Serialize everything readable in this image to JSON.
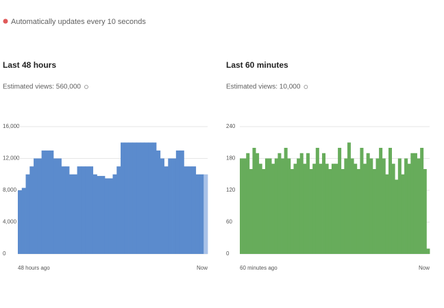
{
  "status": "Automatically updates every 10 seconds",
  "status_color": "#e05a5a",
  "chart_data": [
    {
      "type": "bar",
      "title": "Last 48 hours",
      "subtitle": "Estimated views: 560,000",
      "color": "#5b8bcd",
      "last_bar_color": "#a9c2e8",
      "values": [
        8000,
        8300,
        10000,
        11000,
        12000,
        12000,
        13000,
        13000,
        13000,
        12000,
        12000,
        11000,
        11000,
        10000,
        10000,
        11000,
        11000,
        11000,
        11000,
        10000,
        9800,
        9800,
        9500,
        9500,
        10000,
        11000,
        14000,
        14000,
        14000,
        14000,
        14000,
        14000,
        14000,
        14000,
        14000,
        13000,
        12000,
        11000,
        12000,
        12000,
        13000,
        13000,
        11000,
        11000,
        11000,
        10000,
        10000,
        10000
      ],
      "ylim": [
        0,
        16000
      ],
      "yticks": [
        0,
        {
          "value": 4000,
          "label": "4,000"
        },
        {
          "value": 8000,
          "label": "8,000"
        },
        {
          "value": 12000,
          "label": "12,000"
        },
        {
          "value": 16000,
          "label": "16,000"
        }
      ],
      "x_labels": [
        "48 hours ago",
        "Now"
      ],
      "grid": true
    },
    {
      "type": "bar",
      "title": "Last 60 minutes",
      "subtitle": "Estimated views: 10,000",
      "color": "#67ac5b",
      "values": [
        180,
        180,
        190,
        160,
        200,
        190,
        170,
        160,
        180,
        180,
        170,
        180,
        190,
        180,
        200,
        180,
        160,
        170,
        180,
        190,
        170,
        190,
        160,
        170,
        200,
        170,
        190,
        170,
        160,
        170,
        170,
        200,
        160,
        180,
        210,
        180,
        170,
        160,
        200,
        170,
        190,
        180,
        160,
        180,
        200,
        180,
        150,
        200,
        170,
        140,
        180,
        150,
        180,
        170,
        190,
        190,
        180,
        200,
        160,
        10
      ],
      "ylim": [
        0,
        240
      ],
      "yticks": [
        0,
        60,
        120,
        180,
        240
      ],
      "x_labels": [
        "60 minutes ago",
        "Now"
      ],
      "grid": true
    }
  ]
}
